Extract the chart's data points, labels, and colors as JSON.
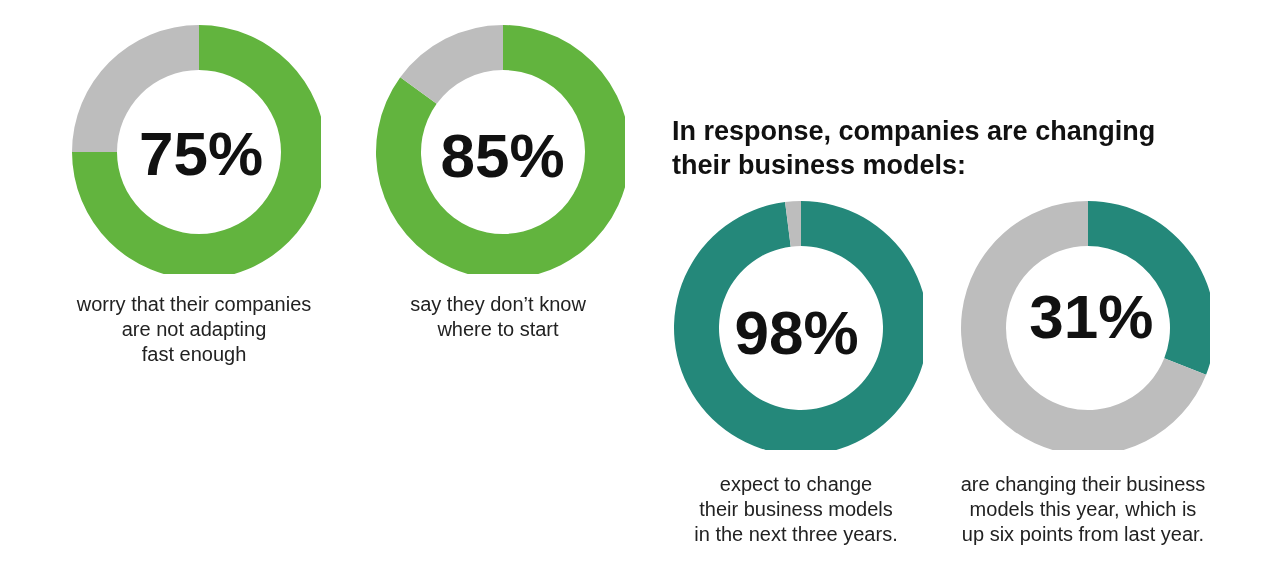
{
  "chart_data": [
    {
      "type": "donut",
      "categories": [
        null,
        null
      ],
      "values": [
        75,
        25
      ],
      "colors": [
        "#62b43e",
        "#bdbdbd"
      ],
      "value_labels": [
        "75%",
        null
      ],
      "annotations": [
        "worry that their companies\nare not adapting\nfast enough"
      ]
    },
    {
      "type": "donut",
      "categories": [
        null,
        null
      ],
      "values": [
        85,
        15
      ],
      "colors": [
        "#62b43e",
        "#bdbdbd"
      ],
      "value_labels": [
        "85%",
        null
      ],
      "annotations": [
        "say they don’t know\nwhere to start"
      ]
    },
    {
      "type": "donut",
      "title": "In response, companies are changing\ntheir business models:",
      "categories": [
        null,
        null
      ],
      "values": [
        98,
        2
      ],
      "colors": [
        "#24887a",
        "#bdbdbd"
      ],
      "value_labels": [
        "98%",
        null
      ],
      "annotations": [
        "expect to change\ntheir business models\nin the next three years."
      ]
    },
    {
      "type": "donut",
      "categories": [
        null,
        null
      ],
      "values": [
        31,
        69
      ],
      "colors": [
        "#24887a",
        "#bdbdbd"
      ],
      "value_labels": [
        "31%",
        null
      ],
      "annotations": [
        "are changing their business\nmodels this year, which is\nup six points from last year."
      ]
    }
  ]
}
